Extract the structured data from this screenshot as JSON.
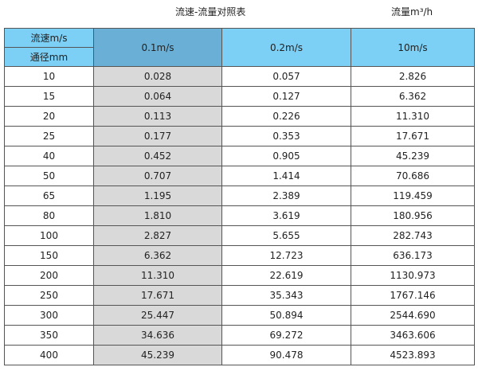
{
  "title": "流速-流量对照表",
  "unit": "流量m³/h",
  "header": {
    "velocity_label": "流速m/s",
    "diameter_label": "通径mm",
    "columns": [
      "0.1m/s",
      "0.2m/s",
      "10m/s"
    ]
  },
  "rows": [
    [
      "10",
      "0.028",
      "0.057",
      "2.826"
    ],
    [
      "15",
      "0.064",
      "0.127",
      "6.362"
    ],
    [
      "20",
      "0.113",
      "0.226",
      "11.310"
    ],
    [
      "25",
      "0.177",
      "0.353",
      "17.671"
    ],
    [
      "40",
      "0.452",
      "0.905",
      "45.239"
    ],
    [
      "50",
      "0.707",
      "1.414",
      "70.686"
    ],
    [
      "65",
      "1.195",
      "2.389",
      "119.459"
    ],
    [
      "80",
      "1.810",
      "3.619",
      "180.956"
    ],
    [
      "100",
      "2.827",
      "5.655",
      "282.743"
    ],
    [
      "150",
      "6.362",
      "12.723",
      "636.173"
    ],
    [
      "200",
      "11.310",
      "22.619",
      "1130.973"
    ],
    [
      "250",
      "17.671",
      "35.343",
      "1767.146"
    ],
    [
      "300",
      "25.447",
      "50.894",
      "2544.690"
    ],
    [
      "350",
      "34.636",
      "69.272",
      "3463.606"
    ],
    [
      "400",
      "45.239",
      "90.478",
      "4523.893"
    ]
  ]
}
